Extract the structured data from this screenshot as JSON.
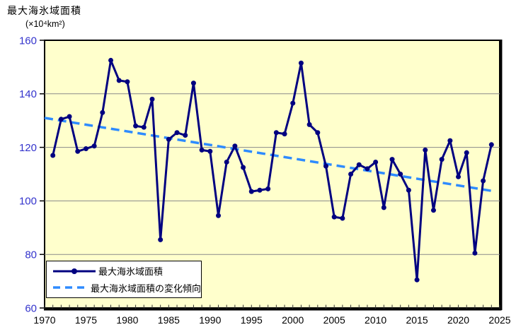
{
  "header": {
    "title": "最大海氷域面積",
    "unit": "(×10⁴km²)"
  },
  "legend": {
    "series_label": "最大海氷域面積",
    "trend_label": "最大海氷域面積の変化傾向"
  },
  "colors": {
    "series": "#000080",
    "trend": "#2E8BFF",
    "plot_background": "#FFFFCC",
    "gridline": "#8a8a8a",
    "border": "#000000",
    "y_axis_label": "#3333CC",
    "x_axis_label": "#000000",
    "tick": "#333333"
  },
  "chart_data": {
    "type": "line",
    "title": "最大海氷域面積",
    "unit_label": "(×10⁴km²)",
    "xlim": [
      1970,
      2025
    ],
    "ylim": [
      60,
      160
    ],
    "y_tick_interval": 20,
    "x_label_interval": 5,
    "x_minor_tick_interval": 1,
    "grid": "horizontal-only",
    "legend_position": "inside-bottom-left",
    "y_tick_labels": [
      "60",
      "80",
      "100",
      "120",
      "140",
      "160"
    ],
    "x_tick_labels": [
      "1970",
      "1975",
      "1980",
      "1985",
      "1990",
      "1995",
      "2000",
      "2005",
      "2010",
      "2015",
      "2020",
      "2025"
    ],
    "years": [
      1971,
      1972,
      1973,
      1974,
      1975,
      1976,
      1977,
      1978,
      1979,
      1980,
      1981,
      1982,
      1983,
      1984,
      1985,
      1986,
      1987,
      1988,
      1989,
      1990,
      1991,
      1992,
      1993,
      1994,
      1995,
      1996,
      1997,
      1998,
      1999,
      2000,
      2001,
      2002,
      2003,
      2004,
      2005,
      2006,
      2007,
      2008,
      2009,
      2010,
      2011,
      2012,
      2013,
      2014,
      2015,
      2016,
      2017,
      2018,
      2019,
      2020,
      2021,
      2022,
      2023,
      2024
    ],
    "series": [
      {
        "name": "最大海氷域面積",
        "values": [
          117,
          130.5,
          131.5,
          118.5,
          119.5,
          120.5,
          133,
          152.5,
          145,
          144.5,
          128,
          127.5,
          138,
          85.5,
          123,
          125.5,
          124.5,
          144,
          119,
          118.5,
          94.5,
          114.5,
          120.5,
          112.5,
          103.5,
          104,
          104.5,
          125.5,
          125,
          136.5,
          151.5,
          128.5,
          125.5,
          113,
          94,
          93.5,
          110,
          113.5,
          112,
          114.5,
          97.5,
          115.5,
          110,
          104,
          70.5,
          119,
          96.5,
          115.5,
          122.5,
          109,
          118,
          80.5,
          107.5,
          121
        ]
      }
    ],
    "trend_line": {
      "name": "最大海氷域面積の変化傾向",
      "style": "dashed",
      "start": {
        "year": 1970,
        "value": 131
      },
      "end": {
        "year": 2024.5,
        "value": 103.5
      }
    }
  }
}
